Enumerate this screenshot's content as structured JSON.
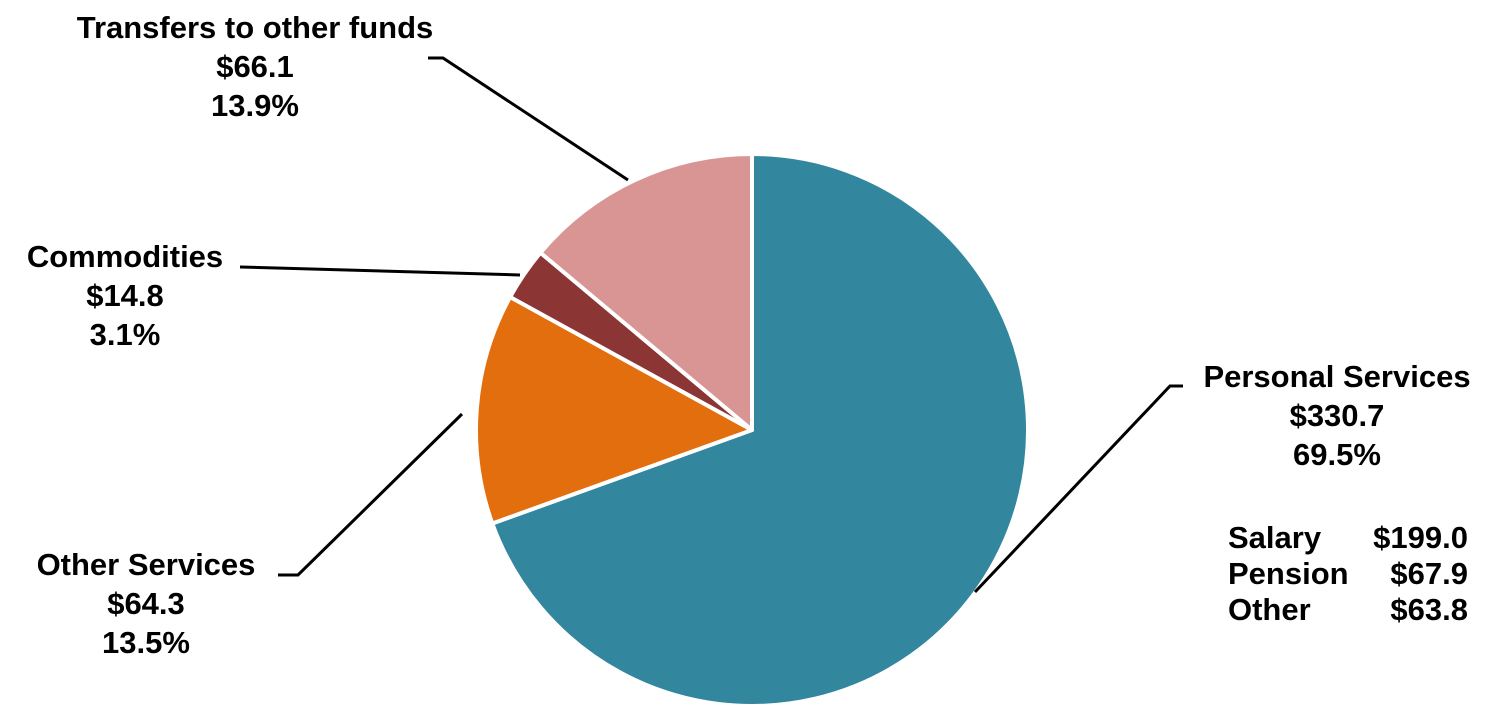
{
  "chart_data": {
    "type": "pie",
    "slices": [
      {
        "label": "Personal Services",
        "amount": "$330.7",
        "percent": "69.5%",
        "value": 69.5,
        "color": "#32869d"
      },
      {
        "label": "Other Services",
        "amount": "$64.3",
        "percent": "13.5%",
        "value": 13.5,
        "color": "#e26e0e"
      },
      {
        "label": "Commodities",
        "amount": "$14.8",
        "percent": "3.1%",
        "value": 3.1,
        "color": "#8b3535"
      },
      {
        "label": "Transfers to other funds",
        "amount": "$66.1",
        "percent": "13.9%",
        "value": 13.9,
        "color": "#d99594"
      }
    ],
    "breakdown": [
      {
        "label": "Salary",
        "amount": "$199.0"
      },
      {
        "label": "Pension",
        "amount": "$67.9"
      },
      {
        "label": "Other",
        "amount": "$63.8"
      }
    ]
  }
}
